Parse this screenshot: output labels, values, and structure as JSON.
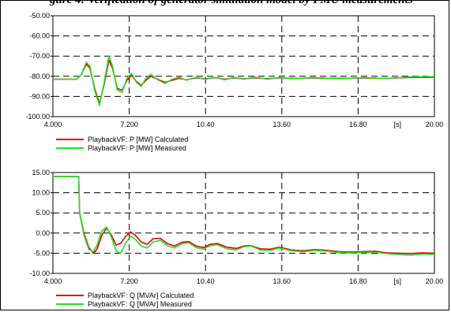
{
  "caption": "gure 4: Verification of generator simulation model by PMU measurements",
  "colors": {
    "calculated": "#e00000",
    "measured": "#22e022",
    "dashed_grid": "#000000"
  },
  "chart_data": [
    {
      "type": "line",
      "xlim": [
        4.0,
        20.0
      ],
      "ylim": [
        -100.0,
        -50.0
      ],
      "x_ticks": [
        "4.000",
        "7.200",
        "10.40",
        "13.60",
        "16.80",
        "[s]",
        "20.00"
      ],
      "y_ticks": [
        "-50.00",
        "-60.00",
        "-70.00",
        "-80.00",
        "-90.00",
        "-100.00"
      ],
      "grid": true,
      "legend_position": "bottom-left",
      "series": [
        {
          "name": "PlaybackVF: P [MW] Calculated",
          "color": "#e00000",
          "points": [
            [
              4.0,
              -81.5
            ],
            [
              5.0,
              -81.5
            ],
            [
              5.2,
              -79
            ],
            [
              5.4,
              -74
            ],
            [
              5.55,
              -76
            ],
            [
              5.75,
              -86
            ],
            [
              5.95,
              -93.5
            ],
            [
              6.15,
              -84
            ],
            [
              6.35,
              -72
            ],
            [
              6.5,
              -76
            ],
            [
              6.7,
              -86
            ],
            [
              6.9,
              -87
            ],
            [
              7.1,
              -82
            ],
            [
              7.3,
              -79.5
            ],
            [
              7.5,
              -82.5
            ],
            [
              7.7,
              -84.5
            ],
            [
              7.9,
              -82
            ],
            [
              8.1,
              -80
            ],
            [
              8.4,
              -81.5
            ],
            [
              8.7,
              -83
            ],
            [
              9.0,
              -82
            ],
            [
              9.3,
              -81
            ],
            [
              9.6,
              -81.8
            ],
            [
              10.0,
              -80.8
            ],
            [
              10.4,
              -81.3
            ],
            [
              10.8,
              -80.7
            ],
            [
              11.2,
              -81.5
            ],
            [
              11.6,
              -80.8
            ],
            [
              12.0,
              -81.3
            ],
            [
              12.5,
              -80.8
            ],
            [
              13.0,
              -81.2
            ],
            [
              13.5,
              -80.8
            ],
            [
              14.0,
              -81
            ],
            [
              15.0,
              -80.9
            ],
            [
              16.0,
              -81
            ],
            [
              17.0,
              -80.9
            ],
            [
              18.0,
              -81
            ],
            [
              19.0,
              -80.6
            ],
            [
              20.0,
              -80.5
            ]
          ]
        },
        {
          "name": "PlaybackVF: P [MW] Measured",
          "color": "#22e022",
          "points": [
            [
              4.0,
              -81.5
            ],
            [
              5.0,
              -81.5
            ],
            [
              5.2,
              -79
            ],
            [
              5.4,
              -73
            ],
            [
              5.55,
              -75
            ],
            [
              5.75,
              -87
            ],
            [
              5.95,
              -94.5
            ],
            [
              6.15,
              -83
            ],
            [
              6.35,
              -70
            ],
            [
              6.5,
              -75
            ],
            [
              6.7,
              -87
            ],
            [
              6.9,
              -88
            ],
            [
              7.1,
              -81
            ],
            [
              7.3,
              -78.5
            ],
            [
              7.5,
              -83
            ],
            [
              7.7,
              -85
            ],
            [
              7.9,
              -81
            ],
            [
              8.1,
              -79
            ],
            [
              8.4,
              -81.8
            ],
            [
              8.7,
              -83.5
            ],
            [
              9.0,
              -81.5
            ],
            [
              9.3,
              -80.5
            ],
            [
              9.6,
              -82
            ],
            [
              10.0,
              -80.5
            ],
            [
              10.4,
              -81.5
            ],
            [
              10.8,
              -80.5
            ],
            [
              11.2,
              -81.8
            ],
            [
              11.6,
              -80.5
            ],
            [
              12.0,
              -81.5
            ],
            [
              12.5,
              -80.5
            ],
            [
              13.0,
              -81.5
            ],
            [
              13.5,
              -80.6
            ],
            [
              14.0,
              -81.2
            ],
            [
              15.0,
              -80.7
            ],
            [
              16.0,
              -81.2
            ],
            [
              17.0,
              -80.7
            ],
            [
              18.0,
              -81.1
            ],
            [
              19.0,
              -80.3
            ],
            [
              20.0,
              -80.2
            ]
          ]
        }
      ]
    },
    {
      "type": "line",
      "xlim": [
        4.0,
        20.0
      ],
      "ylim": [
        -10.0,
        15.0
      ],
      "x_ticks": [
        "4.000",
        "7.200",
        "10.40",
        "13.60",
        "16.80",
        "[s]",
        "20.00"
      ],
      "y_ticks": [
        "15.00",
        "10.00",
        "5.00",
        "0.00",
        "-5.00",
        "-10.00"
      ],
      "grid": true,
      "legend_position": "bottom-left",
      "series": [
        {
          "name": "PlaybackVF: Q [MVAr] Calculated",
          "color": "#e00000",
          "points": [
            [
              4.0,
              14
            ],
            [
              5.08,
              14
            ],
            [
              5.12,
              5
            ],
            [
              5.3,
              0
            ],
            [
              5.5,
              -3.5
            ],
            [
              5.7,
              -5
            ],
            [
              5.85,
              -4
            ],
            [
              6.05,
              -0.5
            ],
            [
              6.25,
              1.2
            ],
            [
              6.45,
              -0.5
            ],
            [
              6.65,
              -3
            ],
            [
              6.85,
              -2.5
            ],
            [
              7.05,
              -0.8
            ],
            [
              7.25,
              0.3
            ],
            [
              7.45,
              -0.5
            ],
            [
              7.7,
              -2.2
            ],
            [
              7.95,
              -2.8
            ],
            [
              8.2,
              -1.4
            ],
            [
              8.5,
              -1.3
            ],
            [
              8.8,
              -2.6
            ],
            [
              9.1,
              -3.2
            ],
            [
              9.4,
              -2.3
            ],
            [
              9.7,
              -2.1
            ],
            [
              10.0,
              -3.2
            ],
            [
              10.3,
              -3.6
            ],
            [
              10.6,
              -2.8
            ],
            [
              10.9,
              -2.6
            ],
            [
              11.3,
              -3.5
            ],
            [
              11.7,
              -3.8
            ],
            [
              12.0,
              -3.2
            ],
            [
              12.3,
              -3.1
            ],
            [
              12.7,
              -3.9
            ],
            [
              13.1,
              -4.0
            ],
            [
              13.5,
              -3.5
            ],
            [
              14.0,
              -4.2
            ],
            [
              14.5,
              -4.4
            ],
            [
              15.0,
              -4.1
            ],
            [
              15.5,
              -4.3
            ],
            [
              16.0,
              -4.6
            ],
            [
              16.5,
              -4.7
            ],
            [
              17.0,
              -4.6
            ],
            [
              17.5,
              -4.5
            ],
            [
              18.0,
              -4.9
            ],
            [
              18.5,
              -5.0
            ],
            [
              19.0,
              -5.1
            ],
            [
              19.5,
              -4.9
            ],
            [
              20.0,
              -5.0
            ]
          ]
        },
        {
          "name": "PlaybackVF: Q [MVAr] Measured",
          "color": "#22e022",
          "points": [
            [
              4.0,
              14
            ],
            [
              5.08,
              14
            ],
            [
              5.12,
              5
            ],
            [
              5.3,
              -0.5
            ],
            [
              5.5,
              -4
            ],
            [
              5.7,
              -4.6
            ],
            [
              5.85,
              -3
            ],
            [
              6.05,
              0.5
            ],
            [
              6.25,
              1.5
            ],
            [
              6.45,
              -1
            ],
            [
              6.65,
              -4.5
            ],
            [
              6.85,
              -5.0
            ],
            [
              7.05,
              -2.5
            ],
            [
              7.25,
              -0.8
            ],
            [
              7.45,
              -1.5
            ],
            [
              7.7,
              -3.2
            ],
            [
              7.95,
              -3.7
            ],
            [
              8.2,
              -2.2
            ],
            [
              8.5,
              -1.8
            ],
            [
              8.8,
              -3.1
            ],
            [
              9.1,
              -3.7
            ],
            [
              9.4,
              -2.7
            ],
            [
              9.7,
              -2.4
            ],
            [
              10.0,
              -3.6
            ],
            [
              10.3,
              -4.0
            ],
            [
              10.6,
              -3.1
            ],
            [
              10.9,
              -2.9
            ],
            [
              11.3,
              -3.9
            ],
            [
              11.7,
              -4.2
            ],
            [
              12.0,
              -3.4
            ],
            [
              12.3,
              -3.2
            ],
            [
              12.7,
              -4.2
            ],
            [
              13.1,
              -4.3
            ],
            [
              13.5,
              -3.7
            ],
            [
              14.0,
              -4.4
            ],
            [
              14.5,
              -4.6
            ],
            [
              15.0,
              -4.3
            ],
            [
              15.5,
              -4.5
            ],
            [
              16.0,
              -4.8
            ],
            [
              16.5,
              -4.9
            ],
            [
              17.0,
              -4.8
            ],
            [
              17.5,
              -4.7
            ],
            [
              18.0,
              -5.1
            ],
            [
              18.5,
              -5.3
            ],
            [
              19.0,
              -5.5
            ],
            [
              19.5,
              -5.2
            ],
            [
              20.0,
              -5.3
            ]
          ]
        }
      ]
    }
  ]
}
